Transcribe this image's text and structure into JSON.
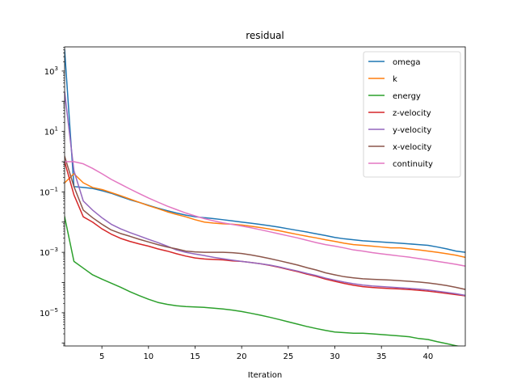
{
  "chart_data": {
    "type": "line",
    "title": "residual",
    "xlabel": "Iteration",
    "ylabel": "",
    "xlim": [
      1,
      44
    ],
    "ylim_log10": [
      -6.1,
      3.8
    ],
    "y_scale": "log",
    "grid": false,
    "legend_position": "top-right",
    "x_ticks": [
      5,
      10,
      15,
      20,
      25,
      30,
      35,
      40
    ],
    "x_tick_labels": [
      "5",
      "10",
      "15",
      "20",
      "25",
      "30",
      "35",
      "40"
    ],
    "y_ticks_log10": [
      3,
      1,
      -1,
      -3,
      -5
    ],
    "y_tick_labels": [
      {
        "base": "10",
        "exp": "3"
      },
      {
        "base": "10",
        "exp": "1"
      },
      {
        "base": "10",
        "exp": "−1"
      },
      {
        "base": "10",
        "exp": "−3"
      },
      {
        "base": "10",
        "exp": "−5"
      }
    ],
    "x": [
      1,
      2,
      3,
      4,
      5,
      6,
      7,
      8,
      9,
      10,
      11,
      12,
      13,
      14,
      15,
      16,
      17,
      18,
      19,
      20,
      21,
      22,
      23,
      24,
      25,
      26,
      27,
      28,
      29,
      30,
      31,
      32,
      33,
      34,
      35,
      36,
      37,
      38,
      39,
      40,
      41,
      42,
      43,
      44
    ],
    "series": [
      {
        "name": "omega",
        "color": "#1f77b4",
        "values": [
          5000,
          0.15,
          0.14,
          0.13,
          0.11,
          0.09,
          0.07,
          0.055,
          0.045,
          0.036,
          0.029,
          0.024,
          0.02,
          0.017,
          0.015,
          0.014,
          0.013,
          0.012,
          0.011,
          0.01,
          0.0092,
          0.0084,
          0.0076,
          0.0068,
          0.006,
          0.0053,
          0.0047,
          0.0041,
          0.0036,
          0.0031,
          0.0028,
          0.0026,
          0.0024,
          0.0023,
          0.0022,
          0.0021,
          0.002,
          0.0019,
          0.0018,
          0.0017,
          0.0015,
          0.0013,
          0.0011,
          0.001
        ]
      },
      {
        "name": "k",
        "color": "#ff7f0e",
        "values": [
          0.2,
          0.4,
          0.2,
          0.14,
          0.12,
          0.095,
          0.075,
          0.058,
          0.045,
          0.035,
          0.028,
          0.022,
          0.018,
          0.015,
          0.012,
          0.01,
          0.0093,
          0.0088,
          0.0085,
          0.008,
          0.0073,
          0.0066,
          0.0059,
          0.0052,
          0.0045,
          0.0039,
          0.0034,
          0.003,
          0.0026,
          0.0023,
          0.002,
          0.0018,
          0.0017,
          0.0016,
          0.0015,
          0.0014,
          0.0014,
          0.0013,
          0.0012,
          0.0011,
          0.001,
          0.0009,
          0.0008,
          0.00068
        ]
      },
      {
        "name": "energy",
        "color": "#2ca02c",
        "values": [
          0.015,
          0.0005,
          0.0003,
          0.00018,
          0.00013,
          9.5e-05,
          7e-05,
          5e-05,
          3.7e-05,
          2.8e-05,
          2.2e-05,
          1.9e-05,
          1.7e-05,
          1.6e-05,
          1.55e-05,
          1.5e-05,
          1.42e-05,
          1.33e-05,
          1.22e-05,
          1.1e-05,
          9.6e-06,
          8.3e-06,
          7.1e-06,
          6e-06,
          5e-06,
          4.2e-06,
          3.5e-06,
          3e-06,
          2.6e-06,
          2.3e-06,
          2.2e-06,
          2.1e-06,
          2.1e-06,
          2e-06,
          1.9e-06,
          1.8e-06,
          1.7e-06,
          1.6e-06,
          1.4e-06,
          1.3e-06,
          1.1e-06,
          9.5e-07,
          8.1e-07,
          7e-07
        ]
      },
      {
        "name": "z-velocity",
        "color": "#d62728",
        "values": [
          1.0,
          0.08,
          0.015,
          0.01,
          0.006,
          0.004,
          0.0029,
          0.0023,
          0.0019,
          0.0016,
          0.0013,
          0.0011,
          0.0009,
          0.00075,
          0.00065,
          0.0006,
          0.00058,
          0.00056,
          0.00052,
          0.0005,
          0.00046,
          0.00042,
          0.00037,
          0.00032,
          0.00027,
          0.00023,
          0.00019,
          0.00016,
          0.00013,
          0.00011,
          9.34e-05,
          8.14e-05,
          7.32e-05,
          6.87e-05,
          6.56e-05,
          6.32e-05,
          6.1e-05,
          5.85e-05,
          5.55e-05,
          5.18e-05,
          4.77e-05,
          4.37e-05,
          3.97e-05,
          3.63e-05
        ]
      },
      {
        "name": "y-velocity",
        "color": "#9467bd",
        "values": [
          200,
          0.5,
          0.05,
          0.025,
          0.014,
          0.0085,
          0.006,
          0.0045,
          0.0035,
          0.0027,
          0.0021,
          0.0016,
          0.0012,
          0.001,
          0.00088,
          0.00078,
          0.00068,
          0.00061,
          0.00055,
          0.0005,
          0.00046,
          0.00042,
          0.00038,
          0.00033,
          0.00028,
          0.00024,
          0.0002,
          0.00017,
          0.00014,
          0.00012,
          0.000103,
          9.15e-05,
          8.26e-05,
          7.72e-05,
          7.33e-05,
          7.02e-05,
          6.73e-05,
          6.4e-05,
          6.05e-05,
          5.66e-05,
          5.18e-05,
          4.72e-05,
          4.25e-05,
          3.75e-05
        ]
      },
      {
        "name": "x-velocity",
        "color": "#8c564b",
        "values": [
          1.5,
          0.15,
          0.025,
          0.014,
          0.0085,
          0.0055,
          0.0042,
          0.0034,
          0.0027,
          0.0022,
          0.0018,
          0.0015,
          0.0013,
          0.0011,
          0.00103,
          0.001,
          0.001,
          0.001,
          0.00097,
          0.00091,
          0.00082,
          0.00072,
          0.00062,
          0.00053,
          0.00045,
          0.00038,
          0.00031,
          0.00026,
          0.00021,
          0.00018,
          0.000156,
          0.000143,
          0.000133,
          0.000128,
          0.000124,
          0.00012,
          0.000115,
          0.00011,
          0.000104,
          9.72e-05,
          8.87e-05,
          7.93e-05,
          6.9e-05,
          5.9e-05
        ]
      },
      {
        "name": "continuity",
        "color": "#e377c2",
        "values": [
          1.0,
          1.0,
          0.85,
          0.6,
          0.4,
          0.26,
          0.18,
          0.125,
          0.088,
          0.063,
          0.046,
          0.034,
          0.026,
          0.02,
          0.016,
          0.013,
          0.011,
          0.0094,
          0.0084,
          0.0074,
          0.0065,
          0.0056,
          0.0048,
          0.0041,
          0.0035,
          0.003,
          0.0025,
          0.0021,
          0.0018,
          0.0016,
          0.0014,
          0.0012,
          0.0011,
          0.00098,
          0.00089,
          0.00082,
          0.00075,
          0.00069,
          0.00062,
          0.00056,
          0.0005,
          0.00045,
          0.0004,
          0.00035
        ]
      }
    ]
  }
}
